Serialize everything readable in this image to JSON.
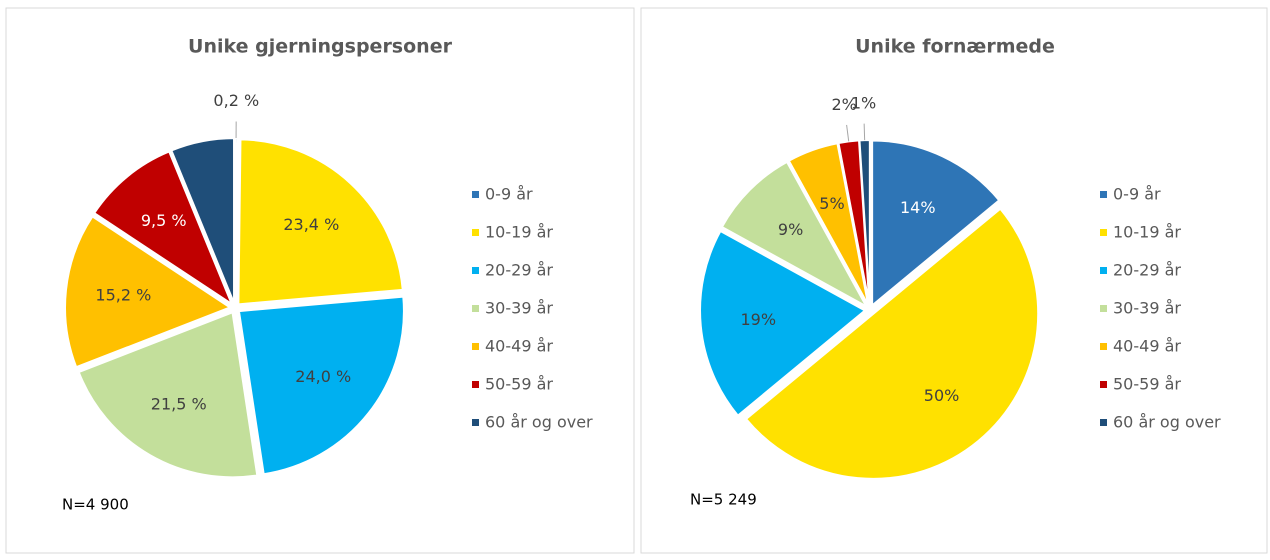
{
  "chart_data": [
    {
      "type": "pie",
      "title": "Unike gjerningspersoner",
      "note": "N=4 900",
      "categories": [
        "0-9 år",
        "10-19 år",
        "20-29 år",
        "30-39 år",
        "40-49 år",
        "50-59 år",
        "60 år og over"
      ],
      "values": [
        0.2,
        23.4,
        24.0,
        21.5,
        15.2,
        9.5,
        6.2
      ],
      "value_labels": [
        "0,2 %",
        "23,4 %",
        "24,0 %",
        "21,5 %",
        "15,2 %",
        "9,5 %",
        null
      ],
      "colors": [
        "#2e75b6",
        "#ffe100",
        "#00b0f0",
        "#c3df9b",
        "#ffc000",
        "#c00000",
        "#1f4e79"
      ]
    },
    {
      "type": "pie",
      "title": "Unike fornærmede",
      "note": "N=5 249",
      "categories": [
        "0-9 år",
        "10-19 år",
        "20-29 år",
        "30-39 år",
        "40-49 år",
        "50-59 år",
        "60 år og over"
      ],
      "values": [
        14,
        50,
        19,
        9,
        5,
        2,
        1
      ],
      "value_labels": [
        "14%",
        "50%",
        "19%",
        "9%",
        "5%",
        "2%",
        "1%"
      ],
      "colors": [
        "#2e75b6",
        "#ffe100",
        "#00b0f0",
        "#c3df9b",
        "#ffc000",
        "#c00000",
        "#1f4e79"
      ]
    }
  ]
}
